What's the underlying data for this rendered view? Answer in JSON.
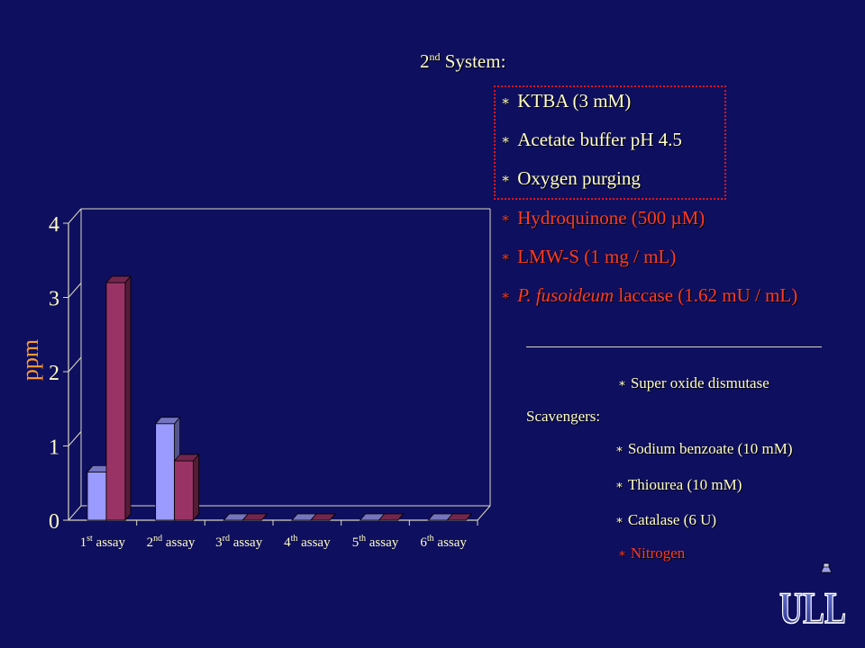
{
  "system": {
    "ordinal": "2",
    "ordinal_suffix": "nd",
    "label": "System:"
  },
  "conditions_boxed": [
    {
      "text": "KTBA (3 mM)"
    },
    {
      "text": "Acetate buffer pH 4.5"
    },
    {
      "text": "Oxygen purging"
    }
  ],
  "conditions_red": [
    {
      "text": "Hydroquinone (500 µM)"
    },
    {
      "text": "LMW-S (1 mg / mL)"
    },
    {
      "italic": "P. fusoideum",
      "text": " laccase (1.62 mU / mL)"
    }
  ],
  "super_oxide": "Super oxide dismutase",
  "scavengers": {
    "label": "Scavengers:",
    "items": [
      "Sodium benzoate (10 mM)",
      "Thiourea (10 mM)",
      "Catalase (6 U)"
    ]
  },
  "nitrogen": "Nitrogen",
  "bullet": "∗",
  "logo_text": "ULL",
  "colors": {
    "background": "#0f0f5f",
    "text_yellow": "#ffffc4",
    "text_red": "#ff3b1f",
    "ylabel": "#ff9a30",
    "series_1": "#9a9aff",
    "series_2": "#993366"
  },
  "chart_data": {
    "type": "bar",
    "style": "3d",
    "ylabel": "ppm",
    "ylim": [
      0,
      4
    ],
    "yticks": [
      "0",
      "1",
      "2",
      "3",
      "4"
    ],
    "categories": [
      {
        "num": "1",
        "sup": "st",
        "word": "assay"
      },
      {
        "num": "2",
        "sup": "nd",
        "word": "assay"
      },
      {
        "num": "3",
        "sup": "rd",
        "word": "assay"
      },
      {
        "num": "4",
        "sup": "th",
        "word": "assay"
      },
      {
        "num": "5",
        "sup": "th",
        "word": "assay"
      },
      {
        "num": "6",
        "sup": "th",
        "word": "assay"
      }
    ],
    "series": [
      {
        "values": [
          0.65,
          1.3,
          0,
          0,
          0,
          0
        ]
      },
      {
        "values": [
          3.2,
          0.8,
          0,
          0,
          0,
          0
        ]
      }
    ],
    "grid": false,
    "legend": "none"
  }
}
